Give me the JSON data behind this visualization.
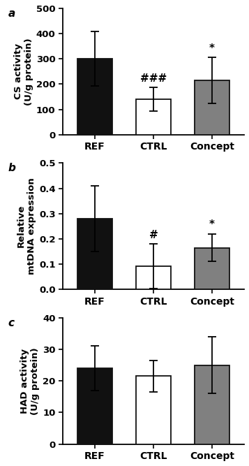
{
  "panels": [
    {
      "label": "a",
      "ylabel_line1": "CS activity",
      "ylabel_line2": "(U/g protein)",
      "ylim": [
        0,
        500
      ],
      "yticks": [
        0,
        100,
        200,
        300,
        400,
        500
      ],
      "bars": [
        {
          "group": "REF",
          "value": 302,
          "err": 108,
          "color": "#111111",
          "edge": "#111111",
          "annotation": null
        },
        {
          "group": "CTRL",
          "value": 140,
          "err": 47,
          "color": "#ffffff",
          "edge": "#111111",
          "annotation": "###"
        },
        {
          "group": "Concept",
          "value": 215,
          "err": 90,
          "color": "#808080",
          "edge": "#111111",
          "annotation": "*"
        }
      ]
    },
    {
      "label": "b",
      "ylabel_line1": "Relative",
      "ylabel_line2": "mtDNA expression",
      "ylim": [
        0,
        0.5
      ],
      "yticks": [
        0.0,
        0.1,
        0.2,
        0.3,
        0.4,
        0.5
      ],
      "bars": [
        {
          "group": "REF",
          "value": 0.28,
          "err": 0.13,
          "color": "#111111",
          "edge": "#111111",
          "annotation": null
        },
        {
          "group": "CTRL",
          "value": 0.092,
          "err": 0.088,
          "color": "#ffffff",
          "edge": "#111111",
          "annotation": "#"
        },
        {
          "group": "Concept",
          "value": 0.165,
          "err": 0.055,
          "color": "#808080",
          "edge": "#111111",
          "annotation": "*"
        }
      ]
    },
    {
      "label": "c",
      "ylabel_line1": "HAD activity",
      "ylabel_line2": "(U/g protein)",
      "ylim": [
        0,
        40
      ],
      "yticks": [
        0,
        10,
        20,
        30,
        40
      ],
      "bars": [
        {
          "group": "REF",
          "value": 24,
          "err": 7,
          "color": "#111111",
          "edge": "#111111",
          "annotation": null
        },
        {
          "group": "CTRL",
          "value": 21.5,
          "err": 5,
          "color": "#ffffff",
          "edge": "#111111",
          "annotation": null
        },
        {
          "group": "Concept",
          "value": 25,
          "err": 9,
          "color": "#808080",
          "edge": "#111111",
          "annotation": null
        }
      ]
    }
  ],
  "bar_width": 0.6,
  "bg_color": "#ffffff",
  "ylabel_fontsize": 9.5,
  "tick_fontsize": 9.5,
  "annotation_fontsize": 11,
  "panel_label_fontsize": 11,
  "xtick_fontsize": 10
}
